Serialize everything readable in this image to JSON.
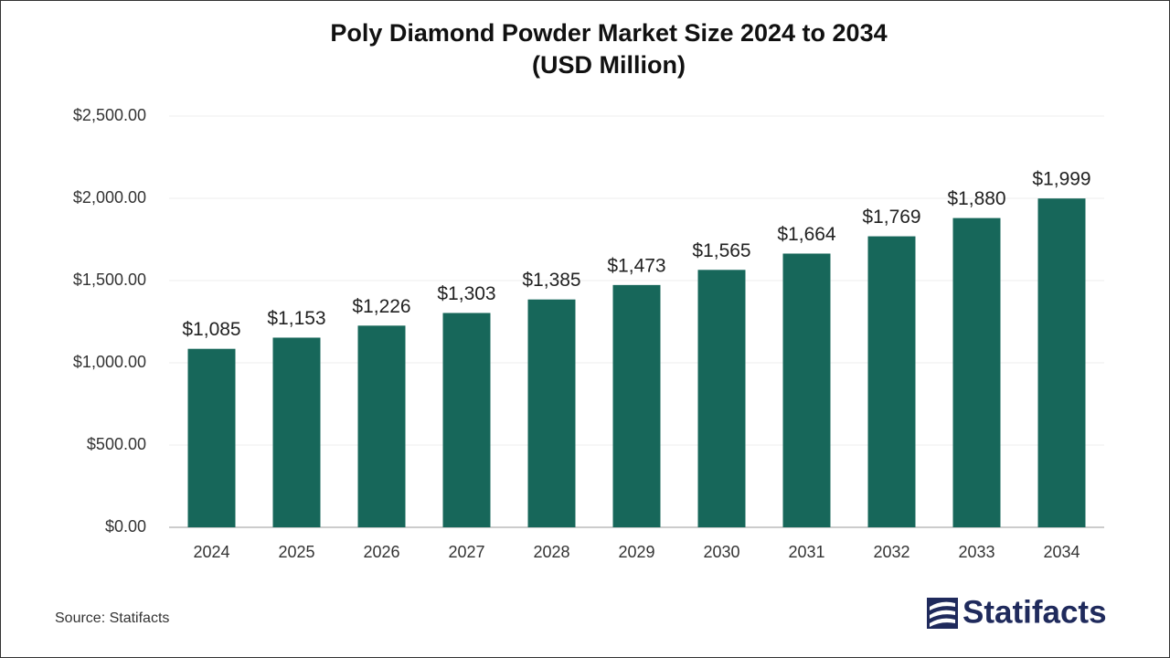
{
  "chart_data": {
    "type": "bar",
    "title": [
      "Poly Diamond Powder Market Size 2024 to 2034",
      "(USD Million)"
    ],
    "categories": [
      "2024",
      "2025",
      "2026",
      "2027",
      "2028",
      "2029",
      "2030",
      "2031",
      "2032",
      "2033",
      "2034"
    ],
    "values": [
      1085,
      1153,
      1226,
      1303,
      1385,
      1473,
      1565,
      1664,
      1769,
      1880,
      1999
    ],
    "value_labels": [
      "$1,085",
      "$1,153",
      "$1,226",
      "$1,303",
      "$1,385",
      "$1,473",
      "$1,565",
      "$1,664",
      "$1,769",
      "$1,880",
      "$1,999"
    ],
    "color": "#17675a",
    "ylim": [
      0,
      2500
    ],
    "yticks": [
      {
        "value": 0,
        "label": "$0.00"
      },
      {
        "value": 500,
        "label": "$500.00"
      },
      {
        "value": 1000,
        "label": "$1,000.00"
      },
      {
        "value": 1500,
        "label": "$1,500.00"
      },
      {
        "value": 2000,
        "label": "$2,000.00"
      },
      {
        "value": 2500,
        "label": "$2,500.00"
      }
    ],
    "grid": true
  },
  "source": "Source: Statifacts",
  "logo": "Statifacts"
}
